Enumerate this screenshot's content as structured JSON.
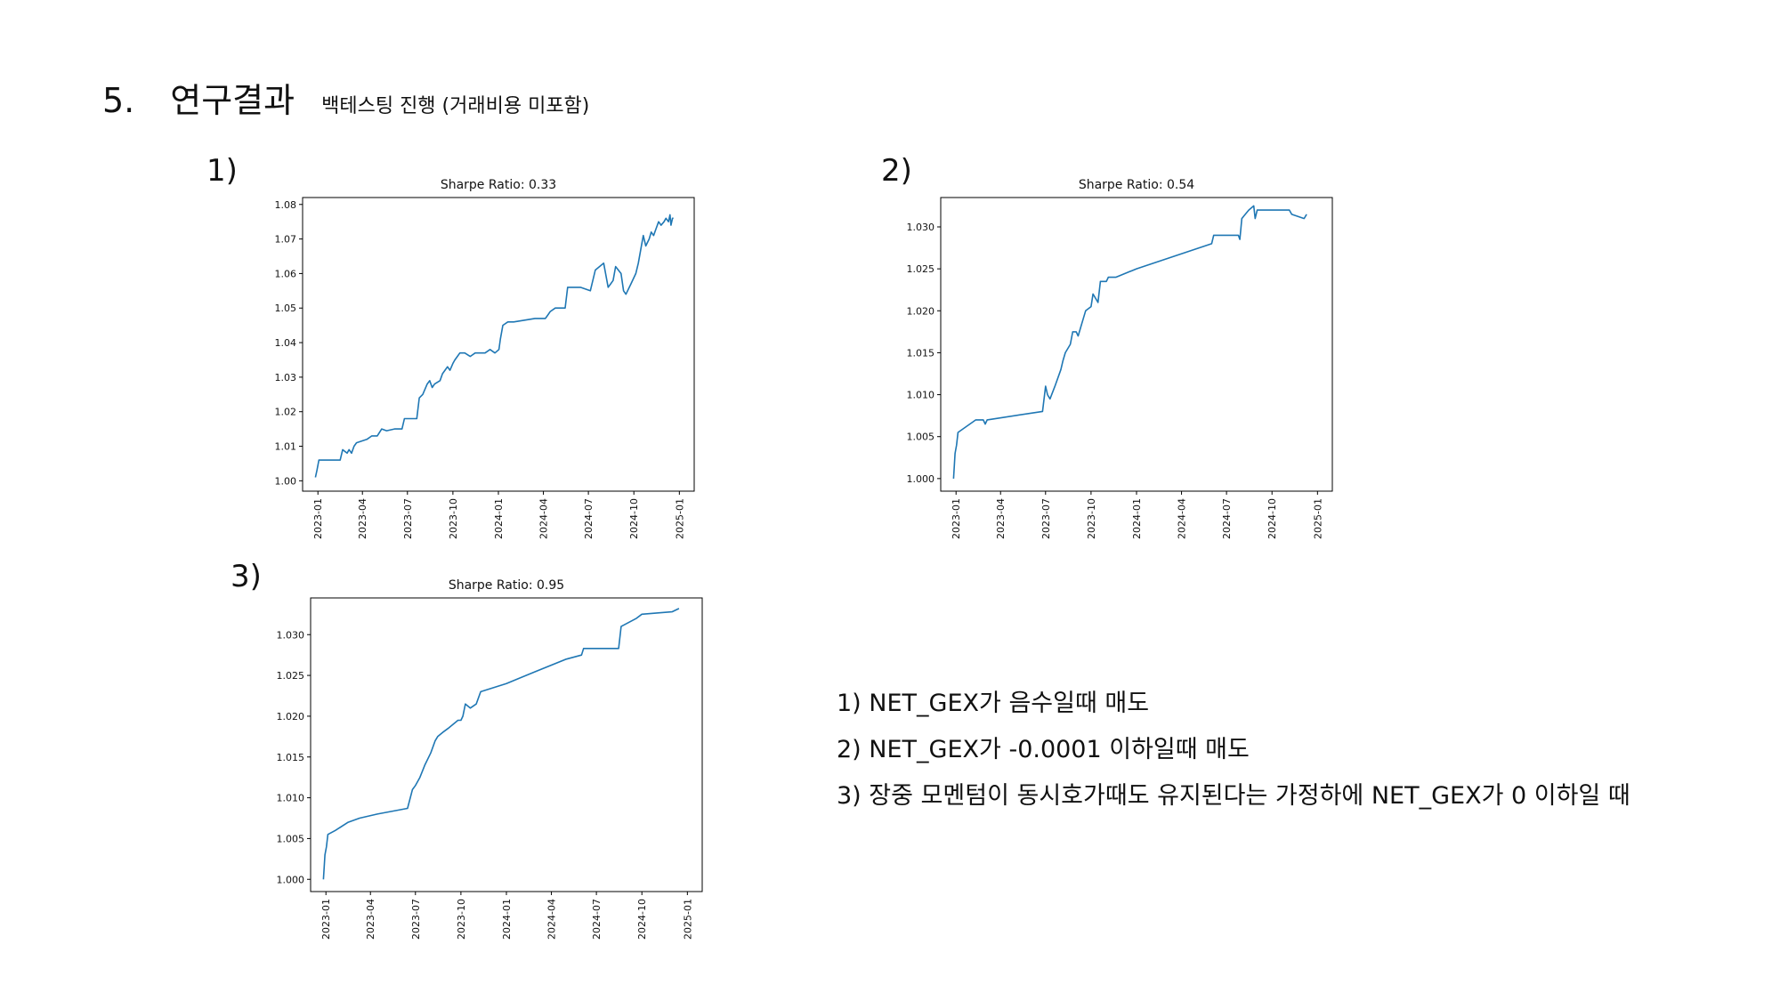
{
  "section": {
    "number": "5.",
    "title": "연구결과",
    "subtitle": "백테스팅 진행 (거래비용 미포함)"
  },
  "panel_labels": [
    "1)",
    "2)",
    "3)"
  ],
  "notes": [
    "1) NET_GEX가 음수일때 매도",
    "2) NET_GEX가 -0.0001 이하일때 매도",
    "3) 장중 모멘텀이 동시호가때도 유지된다는 가정하에 NET_GEX가 0 이하일 때"
  ],
  "chart_data": [
    {
      "type": "line",
      "title": "Sharpe Ratio: 0.33",
      "xlabel": "",
      "ylabel": "",
      "x_ticks": [
        "2023-01",
        "2023-04",
        "2023-07",
        "2023-10",
        "2024-01",
        "2024-04",
        "2024-07",
        "2024-10",
        "2025-01"
      ],
      "y_ticks": [
        "1.00",
        "1.01",
        "1.02",
        "1.03",
        "1.04",
        "1.05",
        "1.06",
        "1.07",
        "1.08"
      ],
      "xlim": [
        "2022-12-01",
        "2025-01-31"
      ],
      "ylim": [
        0.997,
        1.082
      ],
      "color": "#1f77b4",
      "series": [
        {
          "x": [
            "2022-12-27",
            "2022-12-30",
            "2023-01-03",
            "2023-02-15",
            "2023-02-20",
            "2023-03-01",
            "2023-03-05",
            "2023-03-10",
            "2023-03-15",
            "2023-03-20",
            "2023-04-10",
            "2023-04-20",
            "2023-05-01",
            "2023-05-10",
            "2023-05-20",
            "2023-06-05",
            "2023-06-20",
            "2023-06-25",
            "2023-07-01",
            "2023-07-20",
            "2023-07-25",
            "2023-08-01",
            "2023-08-10",
            "2023-08-15",
            "2023-08-20",
            "2023-08-25",
            "2023-09-05",
            "2023-09-10",
            "2023-09-15",
            "2023-09-20",
            "2023-09-25",
            "2023-10-01",
            "2023-10-05",
            "2023-10-10",
            "2023-10-15",
            "2023-10-25",
            "2023-11-05",
            "2023-11-15",
            "2023-11-25",
            "2023-12-05",
            "2023-12-15",
            "2023-12-25",
            "2024-01-02",
            "2024-01-05",
            "2024-01-10",
            "2024-01-20",
            "2024-02-01",
            "2024-03-15",
            "2024-04-05",
            "2024-04-10",
            "2024-04-15",
            "2024-04-25",
            "2024-05-05",
            "2024-05-15",
            "2024-05-20",
            "2024-06-15",
            "2024-07-05",
            "2024-07-15",
            "2024-08-01",
            "2024-08-10",
            "2024-08-15",
            "2024-08-20",
            "2024-08-25",
            "2024-09-05",
            "2024-09-10",
            "2024-09-15",
            "2024-09-25",
            "2024-10-05",
            "2024-10-10",
            "2024-10-15",
            "2024-10-20",
            "2024-10-25",
            "2024-11-01",
            "2024-11-05",
            "2024-11-10",
            "2024-11-15",
            "2024-11-20",
            "2024-11-25",
            "2024-12-01",
            "2024-12-05",
            "2024-12-10",
            "2024-12-13",
            "2024-12-15",
            "2024-12-18",
            "2024-12-20"
          ],
          "y": [
            1.001,
            1.003,
            1.006,
            1.006,
            1.009,
            1.008,
            1.009,
            1.008,
            1.01,
            1.011,
            1.012,
            1.013,
            1.013,
            1.015,
            1.0145,
            1.015,
            1.015,
            1.018,
            1.018,
            1.018,
            1.024,
            1.025,
            1.028,
            1.029,
            1.027,
            1.028,
            1.029,
            1.031,
            1.032,
            1.033,
            1.032,
            1.034,
            1.035,
            1.036,
            1.037,
            1.037,
            1.036,
            1.037,
            1.037,
            1.037,
            1.038,
            1.037,
            1.038,
            1.041,
            1.045,
            1.046,
            1.046,
            1.047,
            1.047,
            1.048,
            1.049,
            1.05,
            1.05,
            1.05,
            1.056,
            1.056,
            1.055,
            1.061,
            1.063,
            1.056,
            1.057,
            1.058,
            1.062,
            1.06,
            1.055,
            1.054,
            1.057,
            1.06,
            1.063,
            1.067,
            1.071,
            1.068,
            1.07,
            1.072,
            1.071,
            1.073,
            1.075,
            1.074,
            1.075,
            1.076,
            1.075,
            1.077,
            1.074,
            1.076,
            1.076
          ]
        }
      ]
    },
    {
      "type": "line",
      "title": "Sharpe Ratio: 0.54",
      "xlabel": "",
      "ylabel": "",
      "x_ticks": [
        "2023-01",
        "2023-04",
        "2023-07",
        "2023-10",
        "2024-01",
        "2024-04",
        "2024-07",
        "2024-10",
        "2025-01"
      ],
      "y_ticks": [
        "1.000",
        "1.005",
        "1.010",
        "1.015",
        "1.020",
        "1.025",
        "1.030"
      ],
      "xlim": [
        "2022-12-01",
        "2025-01-31"
      ],
      "ylim": [
        0.9985,
        1.0335
      ],
      "color": "#1f77b4",
      "series": [
        {
          "x": [
            "2022-12-27",
            "2022-12-30",
            "2023-01-02",
            "2023-01-05",
            "2023-02-10",
            "2023-02-25",
            "2023-03-01",
            "2023-03-05",
            "2023-06-25",
            "2023-07-01",
            "2023-07-05",
            "2023-07-10",
            "2023-07-20",
            "2023-08-01",
            "2023-08-05",
            "2023-08-10",
            "2023-08-20",
            "2023-08-25",
            "2023-09-01",
            "2023-09-05",
            "2023-09-10",
            "2023-09-15",
            "2023-09-20",
            "2023-10-01",
            "2023-10-05",
            "2023-10-10",
            "2023-10-15",
            "2023-10-20",
            "2023-11-01",
            "2023-11-05",
            "2023-11-20",
            "2024-01-01",
            "2024-06-01",
            "2024-06-05",
            "2024-06-10",
            "2024-07-25",
            "2024-07-28",
            "2024-08-01",
            "2024-08-15",
            "2024-08-25",
            "2024-08-28",
            "2024-09-01",
            "2024-11-05",
            "2024-11-10",
            "2024-12-05",
            "2024-12-10"
          ],
          "y": [
            1.0,
            1.003,
            1.004,
            1.0055,
            1.007,
            1.007,
            1.0065,
            1.007,
            1.008,
            1.011,
            1.01,
            1.0095,
            1.011,
            1.013,
            1.014,
            1.015,
            1.016,
            1.0175,
            1.0175,
            1.017,
            1.018,
            1.019,
            1.02,
            1.0205,
            1.022,
            1.0215,
            1.021,
            1.0235,
            1.0235,
            1.024,
            1.024,
            1.025,
            1.028,
            1.029,
            1.029,
            1.029,
            1.0285,
            1.031,
            1.032,
            1.0325,
            1.031,
            1.032,
            1.032,
            1.0315,
            1.031,
            1.0315
          ]
        }
      ]
    },
    {
      "type": "line",
      "title": "Sharpe Ratio: 0.95",
      "xlabel": "",
      "ylabel": "",
      "x_ticks": [
        "2023-01",
        "2023-04",
        "2023-07",
        "2023-10",
        "2024-01",
        "2024-04",
        "2024-07",
        "2024-10",
        "2025-01"
      ],
      "y_ticks": [
        "1.000",
        "1.005",
        "1.010",
        "1.015",
        "1.020",
        "1.025",
        "1.030"
      ],
      "xlim": [
        "2022-12-01",
        "2025-01-31"
      ],
      "ylim": [
        0.9985,
        1.0345
      ],
      "color": "#1f77b4",
      "series": [
        {
          "x": [
            "2022-12-27",
            "2022-12-30",
            "2023-01-02",
            "2023-01-05",
            "2023-01-20",
            "2023-02-15",
            "2023-03-10",
            "2023-04-15",
            "2023-06-15",
            "2023-06-25",
            "2023-07-01",
            "2023-07-10",
            "2023-07-20",
            "2023-08-01",
            "2023-08-10",
            "2023-08-15",
            "2023-08-25",
            "2023-09-05",
            "2023-09-15",
            "2023-09-25",
            "2023-10-01",
            "2023-10-05",
            "2023-10-10",
            "2023-10-20",
            "2023-11-01",
            "2023-11-10",
            "2024-01-01",
            "2024-03-01",
            "2024-05-01",
            "2024-06-01",
            "2024-06-05",
            "2024-08-15",
            "2024-08-20",
            "2024-09-20",
            "2024-10-01",
            "2024-12-01",
            "2024-12-15"
          ],
          "y": [
            1.0,
            1.003,
            1.004,
            1.0055,
            1.006,
            1.007,
            1.0075,
            1.008,
            1.0087,
            1.011,
            1.0115,
            1.0125,
            1.014,
            1.0155,
            1.017,
            1.0175,
            1.018,
            1.0185,
            1.019,
            1.0195,
            1.0195,
            1.02,
            1.0215,
            1.021,
            1.0215,
            1.023,
            1.024,
            1.0255,
            1.027,
            1.0275,
            1.0283,
            1.0283,
            1.031,
            1.032,
            1.0325,
            1.0328,
            1.0332
          ]
        }
      ]
    }
  ]
}
